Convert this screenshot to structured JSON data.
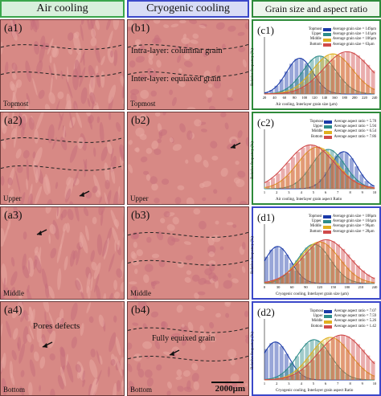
{
  "headers": {
    "air": "Air cooling",
    "cryo": "Cryogenic cooling",
    "grain": "Grain size and aspect ratio"
  },
  "panels": {
    "a1": {
      "label": "(a1)",
      "location": "Topmost"
    },
    "a2": {
      "label": "(a2)",
      "location": "Upper"
    },
    "a3": {
      "label": "(a3)",
      "location": "Middle"
    },
    "a4": {
      "label": "(a4)",
      "location": "Bottom",
      "note": "Pores defects"
    },
    "b1": {
      "label": "(b1)",
      "location": "Topmost",
      "note1": "Intra-layer: columnar grain",
      "note2": "Inter-layer: equiaxed grain"
    },
    "b2": {
      "label": "(b2)",
      "location": "Upper"
    },
    "b3": {
      "label": "(b3)",
      "location": "Middle"
    },
    "b4": {
      "label": "(b4)",
      "location": "Bottom",
      "note": "Fully equixed grain"
    }
  },
  "scalebar": "2000μm",
  "charts": [
    {
      "label": "(c1)",
      "ylabel": "Relative frequency (%)",
      "xlabel": "Air cooling, Interlayer grain size (μm)",
      "legend": [
        {
          "name": "Topmost",
          "text": "Average grain size = 149μm",
          "color": "#1a3aa8"
        },
        {
          "name": "Upper",
          "text": "Average grain size = 141μm",
          "color": "#2e8c8a"
        },
        {
          "name": "Middle",
          "text": "Average grain size = 106μm",
          "color": "#e0b020"
        },
        {
          "name": "Bottom",
          "text": "Average grain size = 63μm",
          "color": "#d04a4a"
        }
      ],
      "xticks": [
        "20",
        "40",
        "60",
        "80",
        "100",
        "120",
        "140",
        "160",
        "180",
        "200",
        "220",
        "240"
      ],
      "peaks": [
        0.32,
        0.5,
        0.62,
        0.75
      ]
    },
    {
      "label": "(c2)",
      "ylabel": "Relative frequency (%)",
      "xlabel": "Air cooling, Interlayer grain aspect Ratio",
      "legend": [
        {
          "name": "Topmost",
          "text": "Average aspect ratio = 5.78",
          "color": "#1a3aa8"
        },
        {
          "name": "Upper",
          "text": "Average aspect ratio = 5.94",
          "color": "#2e8c8a"
        },
        {
          "name": "Middle",
          "text": "Average aspect ratio = 6.54",
          "color": "#e0b020"
        },
        {
          "name": "Bottom",
          "text": "Average aspect ratio = 7.86",
          "color": "#d04a4a"
        }
      ],
      "xticks": [
        "1",
        "2",
        "3",
        "4",
        "5",
        "6",
        "7",
        "8",
        "9",
        "10"
      ],
      "peaks": [
        0.72,
        0.58,
        0.48,
        0.42
      ]
    },
    {
      "label": "(d1)",
      "ylabel": "Relative frequency (%)",
      "xlabel": "Cryogenic cooling, Interlayer grain size (μm)",
      "legend": [
        {
          "name": "Topmost",
          "text": "Average grain size = 108μm",
          "color": "#1a3aa8"
        },
        {
          "name": "Upper",
          "text": "Average grain size = 104μm",
          "color": "#2e8c8a"
        },
        {
          "name": "Middle",
          "text": "Average grain size = 96μm",
          "color": "#e0b020"
        },
        {
          "name": "Bottom",
          "text": "Average grain size = 28μm",
          "color": "#d04a4a"
        }
      ],
      "xticks": [
        "0",
        "30",
        "60",
        "90",
        "120",
        "150",
        "180",
        "210",
        "240"
      ],
      "peaks": [
        0.12,
        0.45,
        0.5,
        0.56
      ]
    },
    {
      "label": "(d2)",
      "ylabel": "Relative frequency (%)",
      "xlabel": "Cryogenic cooling, Interlayer grain aspect Ratio",
      "legend": [
        {
          "name": "Topmost",
          "text": "Average aspect ratio = 7.07",
          "color": "#1a3aa8"
        },
        {
          "name": "Upper",
          "text": "Average aspect ratio = 7.59",
          "color": "#2e8c8a"
        },
        {
          "name": "Middle",
          "text": "Average aspect ratio = 5.26",
          "color": "#e0b020"
        },
        {
          "name": "Bottom",
          "text": "Average aspect ratio = 1.42",
          "color": "#d04a4a"
        }
      ],
      "xticks": [
        "1",
        "2",
        "3",
        "4",
        "5",
        "6",
        "7",
        "8",
        "9",
        "10"
      ],
      "peaks": [
        0.1,
        0.45,
        0.6,
        0.7
      ]
    }
  ]
}
